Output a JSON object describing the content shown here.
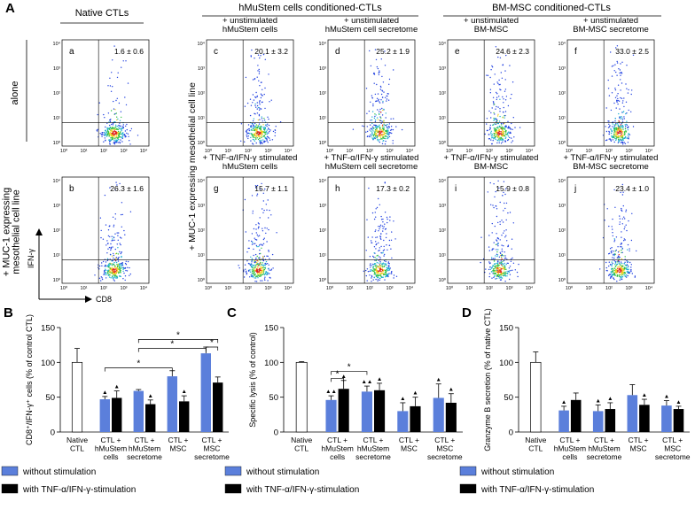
{
  "figure": {
    "panel_label": "A",
    "column_headers": [
      "Native CTLs",
      "hMuStem cells conditioned-CTLs",
      "BM-MSC conditioned-CTLs"
    ],
    "row_labels": [
      "alone",
      "+ MUC-1 expressing\nmesothelial cell line"
    ],
    "side_label": "+ MUC-1 expressing mesothelial cell line",
    "y_axis_label": "IFN-γ",
    "x_axis_label": "CD8",
    "tick_labels": [
      "10⁰",
      "10¹",
      "10²",
      "10³",
      "10⁴"
    ],
    "panels": [
      {
        "letter": "a",
        "percent": "1.6 ± 0.6"
      },
      {
        "letter": "b",
        "percent": "26.3 ± 1.6"
      },
      {
        "letter": "c",
        "subtitle": "+ unstimulated\nhMuStem cells",
        "percent": "20.1 ± 3.2"
      },
      {
        "letter": "d",
        "subtitle": "+ unstimulated\nhMuStem cell secretome",
        "percent": "25.2 ± 1.9"
      },
      {
        "letter": "e",
        "subtitle": "+ unstimulated\nBM-MSC",
        "percent": "24.6 ± 2.3"
      },
      {
        "letter": "f",
        "subtitle": "+ unstimulated\nBM-MSC secretome",
        "percent": "33.0 ± 2.5"
      },
      {
        "letter": "g",
        "subtitle": "+ TNF-α/IFN-γ stimulated\nhMuStem cells",
        "percent": "15.7 ± 1.1"
      },
      {
        "letter": "h",
        "subtitle": "+ TNF-α/IFN-γ stimulated\nhMuStem cell secretome",
        "percent": "17.3 ± 0.2"
      },
      {
        "letter": "i",
        "subtitle": "+ TNF-α/IFN-γ stimulated\nBM-MSC",
        "percent": "15.9 ± 0.8"
      },
      {
        "letter": "j",
        "subtitle": "+ TNF-α/IFN-γ stimulated\nBM-MSC secretome",
        "percent": "23.4 ± 1.0"
      }
    ]
  },
  "chart_data": [
    {
      "type": "bar",
      "panel_label": "B",
      "ylabel": "CD8⁺/IFN-γ⁺ cells (% of control CTL)",
      "categories": [
        "Native\nCTL",
        "CTL +\nhMuStem\ncells",
        "CTL +\nhMuStem\nsecretome",
        "CTL +\nMSC",
        "CTL +\nMSC\nsecretome"
      ],
      "native": {
        "value": 100,
        "error": 20,
        "color": "#ffffff"
      },
      "series": [
        {
          "name": "without stimulation",
          "color": "#5b7fdb",
          "values": [
            null,
            47,
            59,
            80,
            113
          ],
          "errors": [
            null,
            4,
            2,
            8,
            9
          ],
          "markers": [
            null,
            "▲",
            null,
            null,
            null
          ]
        },
        {
          "name": "with TNF-α/IFN-γ-stimulation",
          "color": "#000000",
          "values": [
            null,
            49,
            40,
            44,
            71
          ],
          "errors": [
            null,
            10,
            6,
            8,
            8
          ],
          "markers": [
            null,
            "▲",
            "▲",
            "▲",
            null
          ]
        }
      ],
      "ylim": [
        0,
        150
      ],
      "yticks": [
        0,
        50,
        100,
        150
      ],
      "brackets": [
        {
          "label": "*",
          "y": 92
        },
        {
          "label": "*",
          "y": 120
        },
        {
          "label": "*",
          "y": 133
        },
        {
          "label": "*",
          "y": 122
        }
      ]
    },
    {
      "type": "bar",
      "panel_label": "C",
      "ylabel": "Specific lysis (% of control)",
      "categories": [
        "Native\nCTL",
        "CTL +\nhMuStem\ncells",
        "CTL +\nhMuStem\nsecretome",
        "CTL +\nMSC",
        "CTL +\nMSC\nsecretome"
      ],
      "native": {
        "value": 100,
        "error": 1,
        "color": "#ffffff"
      },
      "series": [
        {
          "name": "without stimulation",
          "color": "#5b7fdb",
          "values": [
            null,
            46,
            58,
            30,
            49
          ],
          "errors": [
            null,
            6,
            8,
            12,
            20
          ],
          "markers": [
            null,
            "▲▲",
            "▲▲",
            "▲",
            "▲"
          ]
        },
        {
          "name": "with TNF-α/IFN-γ-stimulation",
          "color": "#000000",
          "values": [
            null,
            62,
            60,
            37,
            42
          ],
          "errors": [
            null,
            12,
            10,
            13,
            13
          ],
          "markers": [
            null,
            "▲",
            "▲",
            "▲",
            "▲"
          ]
        }
      ],
      "ylim": [
        0,
        150
      ],
      "yticks": [
        0,
        50,
        100,
        150
      ],
      "brackets": [
        {
          "label": "*",
          "y": 77
        },
        {
          "label": "*",
          "y": 87
        }
      ]
    },
    {
      "type": "bar",
      "panel_label": "D",
      "ylabel": "Granzyme B secretion (% of native CTL)",
      "categories": [
        "Native\nCTL",
        "CTL +\nhMuStem\ncells",
        "CTL +\nhMuStem\nsecretome",
        "CTL +\nMSC",
        "CTL +\nMSC\nsecretome"
      ],
      "native": {
        "value": 100,
        "error": 15,
        "color": "#ffffff"
      },
      "series": [
        {
          "name": "without stimulation",
          "color": "#5b7fdb",
          "values": [
            null,
            31,
            30,
            53,
            38
          ],
          "errors": [
            null,
            6,
            9,
            15,
            7
          ],
          "markers": [
            null,
            "▲",
            "▲",
            null,
            "▲"
          ]
        },
        {
          "name": "with TNF-α/IFN-γ-stimulation",
          "color": "#000000",
          "values": [
            null,
            46,
            33,
            39,
            33
          ],
          "errors": [
            null,
            10,
            9,
            8,
            4
          ],
          "markers": [
            null,
            null,
            "▲",
            "▲",
            "▲"
          ]
        }
      ],
      "ylim": [
        0,
        150
      ],
      "yticks": [
        0,
        50,
        100,
        150
      ],
      "brackets": []
    }
  ]
}
